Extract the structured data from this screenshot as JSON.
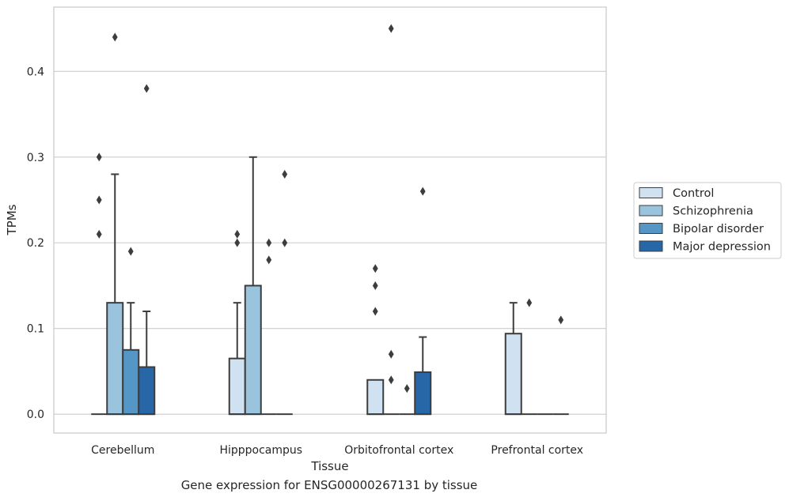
{
  "caption": "Gene expression for ENSG00000267131 by tissue",
  "chart_data": {
    "type": "box",
    "xlabel": "Tissue",
    "ylabel": "TPMs",
    "ylim": [
      -0.022,
      0.475
    ],
    "yticks": [
      0.0,
      0.1,
      0.2,
      0.3,
      0.4
    ],
    "ytick_labels": [
      "0.0",
      "0.1",
      "0.2",
      "0.3",
      "0.4"
    ],
    "grid": "horizontal",
    "legend_position": "right",
    "categories": [
      "Cerebellum",
      "Hipppocampus",
      "Orbitofrontal cortex",
      "Prefrontal cortex"
    ],
    "series": [
      {
        "name": "Control",
        "color": "#d0e1f2",
        "boxes": [
          {
            "q1": 0,
            "median": 0,
            "q3": 0,
            "whisker_low": 0,
            "whisker_high": 0,
            "outliers": [
              0.21,
              0.25,
              0.3
            ]
          },
          {
            "q1": 0,
            "median": 0,
            "q3": 0.065,
            "whisker_low": 0,
            "whisker_high": 0.13,
            "outliers": [
              0.2,
              0.21
            ]
          },
          {
            "q1": 0,
            "median": 0,
            "q3": 0.04,
            "whisker_low": 0,
            "whisker_high": 0.04,
            "outliers": [
              0.12,
              0.15,
              0.17
            ]
          },
          {
            "q1": 0,
            "median": 0,
            "q3": 0.094,
            "whisker_low": 0,
            "whisker_high": 0.13,
            "outliers": []
          }
        ]
      },
      {
        "name": "Schizophrenia",
        "color": "#9ac3dd",
        "boxes": [
          {
            "q1": 0,
            "median": 0,
            "q3": 0.13,
            "whisker_low": 0,
            "whisker_high": 0.28,
            "outliers": [
              0.44
            ]
          },
          {
            "q1": 0,
            "median": 0,
            "q3": 0.15,
            "whisker_low": 0,
            "whisker_high": 0.3,
            "outliers": []
          },
          {
            "q1": 0,
            "median": 0,
            "q3": 0,
            "whisker_low": 0,
            "whisker_high": 0,
            "outliers": [
              0.04,
              0.07,
              0.45
            ]
          },
          {
            "q1": 0,
            "median": 0,
            "q3": 0,
            "whisker_low": 0,
            "whisker_high": 0,
            "outliers": [
              0.13
            ]
          }
        ]
      },
      {
        "name": "Bipolar disorder",
        "color": "#5496c6",
        "boxes": [
          {
            "q1": 0,
            "median": 0,
            "q3": 0.075,
            "whisker_low": 0,
            "whisker_high": 0.13,
            "outliers": [
              0.19
            ]
          },
          {
            "q1": 0,
            "median": 0,
            "q3": 0,
            "whisker_low": 0,
            "whisker_high": 0,
            "outliers": [
              0.18,
              0.2
            ]
          },
          {
            "q1": 0,
            "median": 0,
            "q3": 0,
            "whisker_low": 0,
            "whisker_high": 0,
            "outliers": [
              0.03
            ]
          },
          {
            "q1": 0,
            "median": 0,
            "q3": 0,
            "whisker_low": 0,
            "whisker_high": 0,
            "outliers": []
          }
        ]
      },
      {
        "name": "Major depression",
        "color": "#2767a8",
        "boxes": [
          {
            "q1": 0,
            "median": 0,
            "q3": 0.055,
            "whisker_low": 0,
            "whisker_high": 0.12,
            "outliers": [
              0.38
            ]
          },
          {
            "q1": 0,
            "median": 0,
            "q3": 0,
            "whisker_low": 0,
            "whisker_high": 0,
            "outliers": [
              0.2,
              0.28
            ]
          },
          {
            "q1": 0,
            "median": 0,
            "q3": 0.049,
            "whisker_low": 0,
            "whisker_high": 0.09,
            "outliers": [
              0.26
            ]
          },
          {
            "q1": 0,
            "median": 0,
            "q3": 0,
            "whisker_low": 0,
            "whisker_high": 0,
            "outliers": [
              0.11
            ]
          }
        ]
      }
    ]
  }
}
